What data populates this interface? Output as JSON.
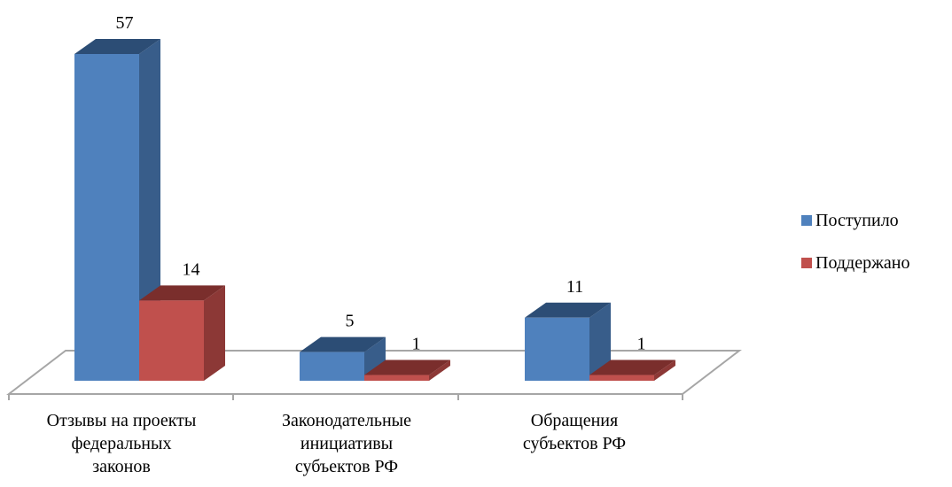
{
  "colors": {
    "series0": "#4F81BD",
    "series1": "#C0504D"
  },
  "chart_data": {
    "type": "bar",
    "title": "",
    "xlabel": "",
    "ylabel": "",
    "ylim": [
      0,
      57
    ],
    "grid": false,
    "legend_position": "right",
    "categories": [
      "Отзывы на проекты федеральных законов",
      "Законодательные инициативы субъектов РФ",
      "Обращения субъектов РФ"
    ],
    "category_lines": [
      [
        "Отзывы на проекты",
        "федеральных",
        "законов"
      ],
      [
        "Законодательные",
        "инициативы",
        "субъектов РФ"
      ],
      [
        "Обращения",
        "субъектов РФ"
      ]
    ],
    "series": [
      {
        "name": "Поступило",
        "values": [
          57,
          5,
          11
        ],
        "labels": [
          "57",
          "5",
          "11"
        ]
      },
      {
        "name": "Поддержано",
        "values": [
          14,
          1,
          1
        ],
        "labels": [
          "14",
          "1",
          "1"
        ]
      }
    ]
  }
}
